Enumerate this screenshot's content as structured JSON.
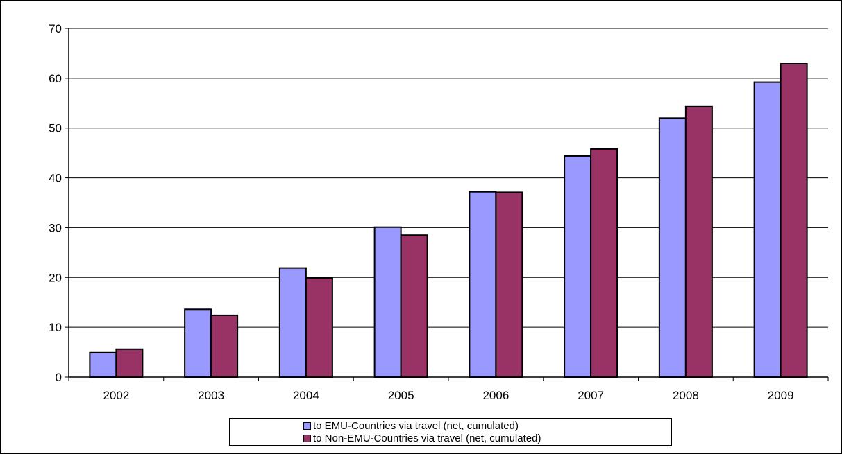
{
  "chart_data": {
    "type": "bar",
    "categories": [
      "2002",
      "2003",
      "2004",
      "2005",
      "2006",
      "2007",
      "2008",
      "2009"
    ],
    "series": [
      {
        "name": "to EMU-Countries via travel (net, cumulated)",
        "color": "#9999ff",
        "values": [
          4.9,
          13.6,
          21.9,
          30.1,
          37.2,
          44.4,
          52.0,
          59.2
        ]
      },
      {
        "name": "to Non-EMU-Countries via travel (net, cumulated)",
        "color": "#993366",
        "values": [
          5.6,
          12.4,
          19.9,
          28.5,
          37.1,
          45.8,
          54.3,
          62.9
        ]
      }
    ],
    "yticks": [
      "0",
      "10",
      "20",
      "30",
      "40",
      "50",
      "60",
      "70"
    ],
    "ylim": [
      0,
      70
    ],
    "grid": true,
    "legend_position": "bottom",
    "title": "",
    "xlabel": "",
    "ylabel": ""
  }
}
